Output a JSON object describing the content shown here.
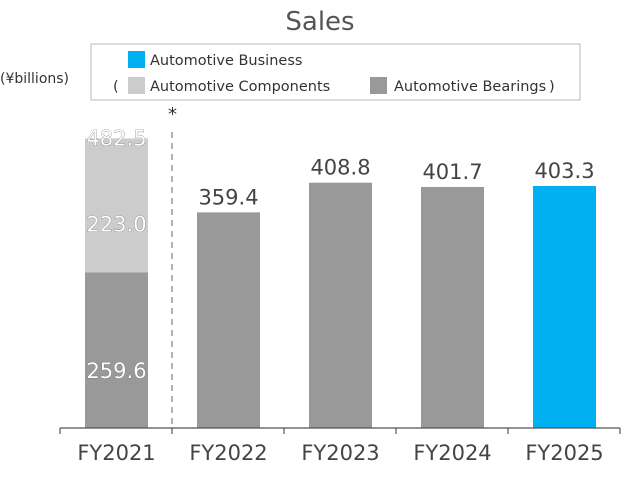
{
  "chart_data": {
    "type": "bar",
    "title": "Sales",
    "unit_label": "(¥billions)",
    "categories": [
      "FY2021",
      "FY2022",
      "FY2023",
      "FY2024",
      "FY2025"
    ],
    "series": [
      {
        "name": "Automotive Bearings",
        "color": "#999999",
        "values": [
          259.6,
          359.4,
          408.8,
          401.7,
          null
        ]
      },
      {
        "name": "Automotive Components",
        "color": "#cccccc",
        "values": [
          223.0,
          null,
          null,
          null,
          null
        ]
      },
      {
        "name": "Automotive Business",
        "color": "#00b0f0",
        "values": [
          null,
          null,
          null,
          null,
          403.3
        ]
      }
    ],
    "totals": [
      482.5,
      359.4,
      408.8,
      401.7,
      403.3
    ],
    "value_labels": {
      "segments": [
        "259.6",
        "223.0"
      ],
      "totals": [
        "482.5",
        "359.4",
        "408.8",
        "401.7",
        "403.3"
      ]
    },
    "legend": {
      "position": "top",
      "items": [
        {
          "label": "Automotive Business",
          "color": "#00b0f0"
        },
        {
          "label": "Automotive Components",
          "color": "#cccccc"
        },
        {
          "label": "Automotive Bearings",
          "color": "#999999"
        }
      ],
      "paren_open": "(",
      "paren_close": ")"
    },
    "note_marker": "*",
    "ylim": [
      0,
      500
    ],
    "grid": false
  }
}
